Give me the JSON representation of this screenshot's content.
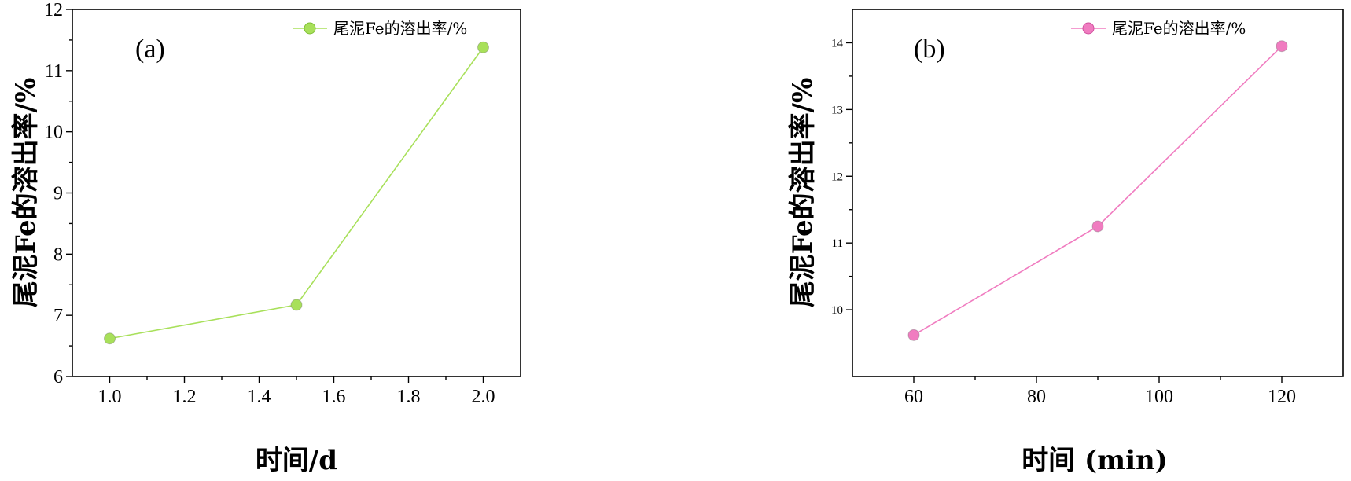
{
  "chart_data": [
    {
      "type": "line",
      "panel_label": "(a)",
      "xlabel": "时间/d",
      "ylabel": "尾泥Fe的溶出率/%",
      "xlim": [
        0.9,
        2.1
      ],
      "ylim": [
        6,
        12
      ],
      "x_ticks": [
        "1.0",
        "1.2",
        "1.4",
        "1.6",
        "1.8",
        "2.0"
      ],
      "y_ticks": [
        "6",
        "7",
        "8",
        "9",
        "10",
        "11",
        "12"
      ],
      "series": [
        {
          "name": "尾泥Fe的溶出率/%",
          "x": [
            1.0,
            1.5,
            2.0
          ],
          "values": [
            6.62,
            7.17,
            11.38
          ]
        }
      ],
      "color": "#a8e05a",
      "legend_position": "top-right",
      "grid": false
    },
    {
      "type": "line",
      "panel_label": "(b)",
      "xlabel": "时间 (min)",
      "ylabel": "尾泥Fe的溶出率/%",
      "xlim": [
        50,
        130
      ],
      "ylim": [
        9,
        14.5
      ],
      "x_ticks": [
        "60",
        "80",
        "100",
        "120"
      ],
      "y_ticks": [
        "10",
        "11",
        "12",
        "13",
        "14"
      ],
      "series": [
        {
          "name": "尾泥Fe的溶出率/%",
          "x": [
            60,
            90,
            120
          ],
          "values": [
            9.62,
            11.25,
            13.95
          ]
        }
      ],
      "color": "#f07cc0",
      "legend_position": "top-right",
      "grid": false
    }
  ]
}
